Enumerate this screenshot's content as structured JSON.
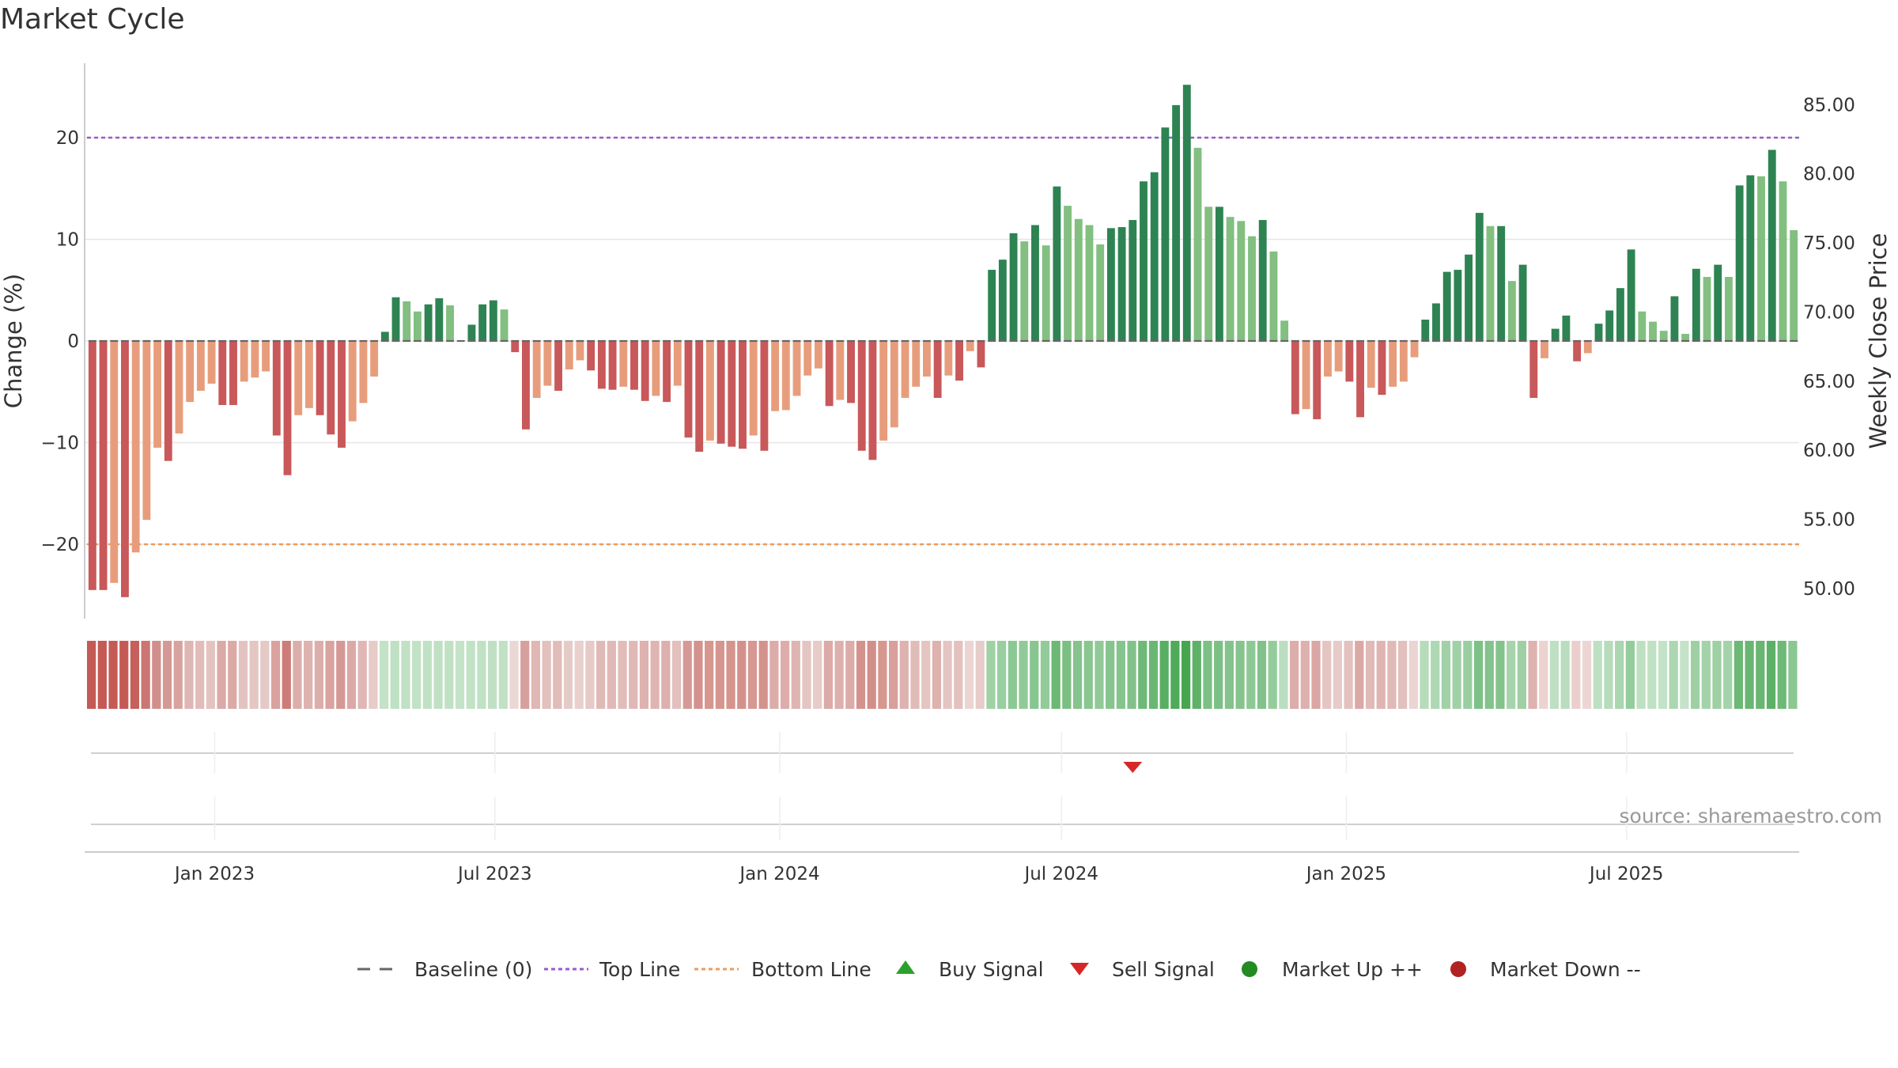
{
  "chart_data": {
    "type": "bar",
    "title": "Market Cycle",
    "ylabel": "Change (%)",
    "y2label": "Weekly Close Price",
    "ylim": [
      -27,
      27
    ],
    "y2lim": [
      48.5,
      88
    ],
    "yticks": [
      20,
      10,
      0,
      -10,
      -20
    ],
    "yticks_text": [
      "20",
      "10",
      "0",
      "−10",
      "−20"
    ],
    "y2ticks": [
      "85.00",
      "80.00",
      "75.00",
      "70.00",
      "65.00",
      "60.00",
      "55.00",
      "50.00"
    ],
    "top_line": 20,
    "bottom_line": -20,
    "start_date": "2022-10-14",
    "x_ticks": [
      {
        "label": "Jan 2023",
        "date": "2023-01-01"
      },
      {
        "label": "Jul 2023",
        "date": "2023-07-01"
      },
      {
        "label": "Jan 2024",
        "date": "2024-01-01"
      },
      {
        "label": "Jul 2024",
        "date": "2024-07-01"
      },
      {
        "label": "Jan 2025",
        "date": "2025-01-01"
      },
      {
        "label": "Jul 2025",
        "date": "2025-07-01"
      }
    ],
    "values": [
      -24.5,
      -24.5,
      -23.8,
      -25.2,
      -20.8,
      -17.6,
      -10.5,
      -11.8,
      -9.1,
      -6.0,
      -4.9,
      -4.2,
      -6.3,
      -6.3,
      -4.0,
      -3.6,
      -3.0,
      -9.3,
      -13.2,
      -7.3,
      -6.6,
      -7.3,
      -9.2,
      -10.5,
      -7.9,
      -6.1,
      -3.5,
      0.9,
      4.3,
      3.9,
      2.9,
      3.6,
      4.2,
      3.5,
      0,
      1.6,
      3.6,
      4.0,
      3.1,
      -1.1,
      -8.7,
      -5.6,
      -4.4,
      -4.9,
      -2.8,
      -1.9,
      -2.9,
      -4.7,
      -4.8,
      -4.5,
      -4.8,
      -5.9,
      -5.4,
      -6.0,
      -4.4,
      -9.5,
      -10.9,
      -9.8,
      -10.1,
      -10.4,
      -10.6,
      -9.3,
      -10.8,
      -6.9,
      -6.8,
      -5.4,
      -3.4,
      -2.7,
      -6.4,
      -5.8,
      -6.1,
      -10.8,
      -11.7,
      -9.8,
      -8.5,
      -5.6,
      -4.5,
      -3.5,
      -5.6,
      -3.4,
      -3.9,
      -1.0,
      -2.6,
      7.0,
      8.0,
      10.6,
      9.8,
      11.4,
      9.4,
      15.2,
      13.3,
      12.0,
      11.4,
      9.5,
      11.1,
      11.2,
      11.9,
      15.7,
      16.6,
      21.0,
      23.2,
      25.2,
      19.0,
      13.2,
      13.2,
      12.2,
      11.8,
      10.3,
      11.9,
      8.8,
      2.0,
      -7.2,
      -6.7,
      -7.7,
      -3.5,
      -3.0,
      -4.0,
      -7.5,
      -4.6,
      -5.3,
      -4.5,
      -4.0,
      -1.6,
      2.1,
      3.7,
      6.8,
      7.0,
      8.5,
      12.6,
      11.3,
      11.3,
      5.9,
      7.5,
      -5.6,
      -1.7,
      1.2,
      2.5,
      -2.0,
      -1.2,
      1.7,
      3.0,
      5.2,
      9.0,
      2.9,
      1.9,
      1.0,
      4.4,
      0.7,
      7.1,
      6.3,
      7.5,
      6.3,
      15.3,
      16.3,
      16.2,
      18.8,
      15.7,
      10.9
    ],
    "heat_colors": [
      "#c55a55",
      "#c55a55",
      "#c55a55",
      "#c55a55",
      "#c5605b",
      "#cb7672",
      "#d18f8c",
      "#d59995",
      "#d8a39f",
      "#deb6b3",
      "#e1bcb9",
      "#e3c3c0",
      "#dbaaa6",
      "#dbaaa6",
      "#e3c3c0",
      "#e4c6c3",
      "#e5c9c6",
      "#d9a29e",
      "#cd7c78",
      "#dcaeab",
      "#ddb2af",
      "#dcaeab",
      "#d9a3a0",
      "#d59995",
      "#dbaaa6",
      "#dfb7b4",
      "#e6cbc8",
      "#c3e2c7",
      "#bfe0c3",
      "#c0e1c4",
      "#c2e2c6",
      "#c1e1c5",
      "#c0e0c4",
      "#c1e1c5",
      "#c4e3c8",
      "#c2e2c6",
      "#c1e1c5",
      "#c0e0c4",
      "#c1e1c5",
      "#ebd7d4",
      "#d8a09c",
      "#dfb7b4",
      "#e2c0bd",
      "#e1bcb9",
      "#e5cbc8",
      "#e8d0cd",
      "#e5cac7",
      "#e0bab7",
      "#e0b9b6",
      "#e1bcb9",
      "#e0b9b6",
      "#deb2af",
      "#dfb5b2",
      "#ddb0ad",
      "#e2c0bd",
      "#d69a96",
      "#d4928e",
      "#d6978f",
      "#d6968f",
      "#d5948d",
      "#d4918b",
      "#d69893",
      "#d4928d",
      "#dcaca9",
      "#dcadaa",
      "#dfb5b2",
      "#e4c5c2",
      "#e6cbc8",
      "#dcaaa7",
      "#ddb0ad",
      "#dcaca9",
      "#d4928d",
      "#d28f8a",
      "#d6978f",
      "#d89f9b",
      "#deb2af",
      "#e0bcb9",
      "#e4c5c2",
      "#deb2af",
      "#e4c5c2",
      "#e3c1be",
      "#ebd5d2",
      "#e6cdca",
      "#9fd1a5",
      "#99cea0",
      "#8cc894",
      "#90ca98",
      "#88c690",
      "#92cb99",
      "#6cb875",
      "#7bbf83",
      "#85c48d",
      "#89c690",
      "#91ca98",
      "#87c58f",
      "#86c48e",
      "#82c28a",
      "#6eb977",
      "#6ab774",
      "#58af62",
      "#4faa59",
      "#46a650",
      "#5fb168",
      "#7dc085",
      "#7dc085",
      "#84c38c",
      "#86c48e",
      "#8ec896",
      "#82c28a",
      "#95cc9c",
      "#bbdec0",
      "#dcadaa",
      "#ddb1ae",
      "#daa7a4",
      "#e4c5c2",
      "#e6cbc8",
      "#e3c1be",
      "#daa9a6",
      "#e0bab7",
      "#dfb5b2",
      "#e0bab7",
      "#e2c0bd",
      "#ebd4d1",
      "#b6dcbb",
      "#aed7b3",
      "#a1d2a7",
      "#a0d1a6",
      "#99cea0",
      "#7ec187",
      "#84c38c",
      "#84c38c",
      "#a7d4ac",
      "#9ed0a4",
      "#deb2af",
      "#ecd3d0",
      "#bee0c2",
      "#b9ddbe",
      "#eccfcc",
      "#ecd6d3",
      "#bee0c2",
      "#b6dcbb",
      "#aad6b0",
      "#94cc9b",
      "#bde0c1",
      "#c0e1c4",
      "#c3e2c7",
      "#acd7b1",
      "#c4e3c8",
      "#9ed0a4",
      "#a3d3a9",
      "#9dd0a3",
      "#a3d3a9",
      "#6db876",
      "#68b672",
      "#69b672",
      "#5db167",
      "#6eb977",
      "#8bc792"
    ],
    "sell_signals": [
      "2024-08-16"
    ],
    "buy_signals": [],
    "source": "source: sharemaestro.com",
    "legend": [
      "Baseline (0)",
      "Top Line",
      "Bottom Line",
      "Buy Signal",
      "Sell Signal",
      "Market Up ++",
      "Market Down --"
    ],
    "legend_placement": "bottom",
    "colors": {
      "green_dark": "#2e8352",
      "green_light": "#82bf80",
      "red_dark": "#c8585a",
      "red_light": "#e79d7c",
      "top_line": "#9b59d0",
      "bottom_line": "#ef9a5a",
      "baseline": "#666666",
      "buy": "#2ca02c",
      "sell": "#d62728",
      "market_up": "#228b22",
      "market_down": "#b22222",
      "grid": "#e6e6e6"
    }
  }
}
